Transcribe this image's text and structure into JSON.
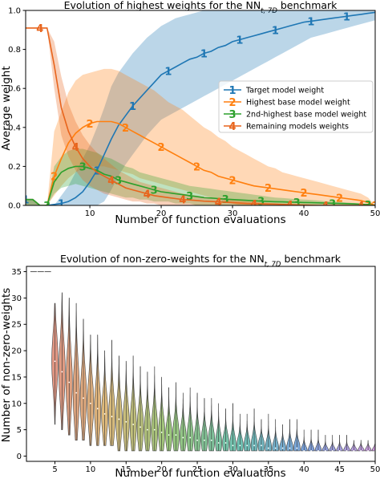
{
  "chart_data": [
    {
      "type": "line",
      "title": "Evolution of highest weights for the NN",
      "title_sub": "t, 7D",
      "title_suffix": " benchmark",
      "xlabel": "Number of function evaluations",
      "ylabel": "Average weight",
      "xlim": [
        1,
        50
      ],
      "ylim": [
        0,
        1.0
      ],
      "xticks": [
        10,
        20,
        30,
        40,
        50
      ],
      "yticks": [
        0.0,
        0.2,
        0.4,
        0.6,
        0.8,
        1.0
      ],
      "grid": false,
      "legend_position": "center-right",
      "x": [
        1,
        2,
        3,
        4,
        5,
        6,
        7,
        8,
        9,
        10,
        11,
        12,
        13,
        14,
        15,
        16,
        17,
        18,
        19,
        20,
        21,
        22,
        23,
        24,
        25,
        26,
        27,
        28,
        29,
        30,
        31,
        32,
        33,
        34,
        35,
        36,
        37,
        38,
        39,
        40,
        41,
        42,
        43,
        44,
        45,
        46,
        47,
        48,
        49,
        50
      ],
      "series": [
        {
          "name": "Target model weight",
          "color": "#1f77b4",
          "marker": "1",
          "values": [
            0.03,
            0.03,
            0.0,
            0.0,
            0.005,
            0.01,
            0.02,
            0.04,
            0.07,
            0.12,
            0.18,
            0.26,
            0.34,
            0.41,
            0.46,
            0.51,
            0.55,
            0.59,
            0.63,
            0.67,
            0.69,
            0.71,
            0.73,
            0.75,
            0.76,
            0.78,
            0.79,
            0.81,
            0.82,
            0.84,
            0.85,
            0.86,
            0.87,
            0.88,
            0.89,
            0.9,
            0.91,
            0.92,
            0.93,
            0.94,
            0.945,
            0.95,
            0.955,
            0.96,
            0.965,
            0.97,
            0.975,
            0.98,
            0.985,
            0.99
          ],
          "band_low": [
            0.0,
            0.0,
            0.0,
            0.0,
            0.0,
            0.0,
            0.0,
            0.0,
            0.0,
            0.0,
            0.0,
            0.02,
            0.08,
            0.15,
            0.21,
            0.26,
            0.31,
            0.36,
            0.4,
            0.44,
            0.46,
            0.48,
            0.5,
            0.52,
            0.54,
            0.56,
            0.58,
            0.6,
            0.62,
            0.64,
            0.66,
            0.68,
            0.7,
            0.72,
            0.74,
            0.76,
            0.78,
            0.8,
            0.82,
            0.84,
            0.86,
            0.87,
            0.88,
            0.89,
            0.9,
            0.91,
            0.92,
            0.93,
            0.94,
            0.95
          ],
          "band_high": [
            0.03,
            0.03,
            0.0,
            0.0,
            0.0,
            0.05,
            0.1,
            0.17,
            0.24,
            0.31,
            0.4,
            0.5,
            0.61,
            0.68,
            0.73,
            0.78,
            0.82,
            0.86,
            0.89,
            0.92,
            0.94,
            0.96,
            0.97,
            0.98,
            0.99,
            1.0,
            1.0,
            1.0,
            1.0,
            1.0,
            1.0,
            1.0,
            1.0,
            1.0,
            1.0,
            1.0,
            1.0,
            1.0,
            1.0,
            1.0,
            1.0,
            1.0,
            1.0,
            1.0,
            1.0,
            1.0,
            1.0,
            1.0,
            1.0,
            1.0
          ]
        },
        {
          "name": "Highest base model weight",
          "color": "#ff7f0e",
          "marker": "2",
          "values": [
            0.03,
            0.03,
            0.0,
            0.0,
            0.15,
            0.24,
            0.32,
            0.37,
            0.4,
            0.42,
            0.43,
            0.43,
            0.43,
            0.42,
            0.4,
            0.38,
            0.36,
            0.34,
            0.32,
            0.3,
            0.28,
            0.26,
            0.24,
            0.22,
            0.2,
            0.18,
            0.17,
            0.15,
            0.14,
            0.13,
            0.12,
            0.11,
            0.1,
            0.095,
            0.09,
            0.085,
            0.08,
            0.075,
            0.07,
            0.065,
            0.06,
            0.055,
            0.05,
            0.045,
            0.04,
            0.035,
            0.03,
            0.025,
            0.015,
            0.0
          ],
          "band_low": [
            0.0,
            0.0,
            0.0,
            0.0,
            0.05,
            0.1,
            0.14,
            0.17,
            0.19,
            0.2,
            0.2,
            0.2,
            0.19,
            0.18,
            0.17,
            0.16,
            0.14,
            0.13,
            0.12,
            0.11,
            0.1,
            0.09,
            0.08,
            0.07,
            0.06,
            0.05,
            0.04,
            0.03,
            0.02,
            0.01,
            0.0,
            0.0,
            0.0,
            0.0,
            0.0,
            0.0,
            0.0,
            0.0,
            0.0,
            0.0,
            0.0,
            0.0,
            0.0,
            0.0,
            0.0,
            0.0,
            0.0,
            0.0,
            0.0,
            0.0
          ],
          "band_high": [
            0.03,
            0.03,
            0.0,
            0.0,
            0.38,
            0.48,
            0.58,
            0.64,
            0.67,
            0.68,
            0.69,
            0.7,
            0.7,
            0.69,
            0.67,
            0.65,
            0.63,
            0.61,
            0.59,
            0.56,
            0.53,
            0.51,
            0.49,
            0.46,
            0.43,
            0.4,
            0.38,
            0.35,
            0.33,
            0.3,
            0.28,
            0.26,
            0.24,
            0.22,
            0.2,
            0.19,
            0.17,
            0.16,
            0.15,
            0.14,
            0.13,
            0.12,
            0.11,
            0.1,
            0.09,
            0.08,
            0.07,
            0.06,
            0.04,
            0.0
          ]
        },
        {
          "name": "2nd-highest base model weight",
          "color": "#2ca02c",
          "marker": "3",
          "values": [
            0.03,
            0.03,
            0.0,
            0.0,
            0.12,
            0.17,
            0.19,
            0.2,
            0.2,
            0.19,
            0.18,
            0.16,
            0.15,
            0.13,
            0.12,
            0.11,
            0.1,
            0.09,
            0.08,
            0.07,
            0.065,
            0.06,
            0.055,
            0.05,
            0.045,
            0.04,
            0.038,
            0.035,
            0.032,
            0.03,
            0.028,
            0.026,
            0.024,
            0.022,
            0.02,
            0.019,
            0.018,
            0.017,
            0.016,
            0.015,
            0.014,
            0.013,
            0.012,
            0.011,
            0.01,
            0.009,
            0.008,
            0.006,
            0.004,
            0.0
          ],
          "band_low": [
            0.0,
            0.0,
            0.0,
            0.0,
            0.06,
            0.09,
            0.1,
            0.11,
            0.1,
            0.09,
            0.08,
            0.07,
            0.06,
            0.05,
            0.04,
            0.04,
            0.03,
            0.03,
            0.02,
            0.02,
            0.02,
            0.01,
            0.01,
            0.01,
            0.0,
            0.0,
            0.0,
            0.0,
            0.0,
            0.0,
            0.0,
            0.0,
            0.0,
            0.0,
            0.0,
            0.0,
            0.0,
            0.0,
            0.0,
            0.0,
            0.0,
            0.0,
            0.0,
            0.0,
            0.0,
            0.0,
            0.0,
            0.0,
            0.0,
            0.0
          ],
          "band_high": [
            0.03,
            0.03,
            0.0,
            0.0,
            0.2,
            0.25,
            0.28,
            0.29,
            0.29,
            0.28,
            0.27,
            0.25,
            0.24,
            0.22,
            0.2,
            0.19,
            0.17,
            0.16,
            0.15,
            0.14,
            0.13,
            0.12,
            0.11,
            0.1,
            0.095,
            0.09,
            0.085,
            0.08,
            0.075,
            0.07,
            0.065,
            0.06,
            0.055,
            0.05,
            0.045,
            0.04,
            0.038,
            0.035,
            0.032,
            0.03,
            0.028,
            0.025,
            0.022,
            0.02,
            0.018,
            0.015,
            0.012,
            0.01,
            0.006,
            0.0
          ]
        },
        {
          "name": "Remaining models weights",
          "color": "#e8641c",
          "marker": "4",
          "values": [
            0.91,
            0.91,
            0.91,
            0.91,
            0.72,
            0.5,
            0.38,
            0.3,
            0.24,
            0.2,
            0.17,
            0.15,
            0.13,
            0.11,
            0.09,
            0.08,
            0.07,
            0.06,
            0.05,
            0.045,
            0.04,
            0.035,
            0.03,
            0.028,
            0.025,
            0.022,
            0.02,
            0.018,
            0.016,
            0.014,
            0.012,
            0.01,
            0.009,
            0.008,
            0.007,
            0.006,
            0.005,
            0.004,
            0.003,
            0.002,
            0.001,
            0.0,
            0.0,
            0.0,
            0.0,
            0.0,
            0.0,
            0.0,
            0.0,
            0.0
          ],
          "band_low": [
            0.91,
            0.91,
            0.91,
            0.91,
            0.6,
            0.36,
            0.25,
            0.18,
            0.13,
            0.1,
            0.08,
            0.06,
            0.05,
            0.04,
            0.03,
            0.02,
            0.02,
            0.01,
            0.01,
            0.0,
            0.0,
            0.0,
            0.0,
            0.0,
            0.0,
            0.0,
            0.0,
            0.0,
            0.0,
            0.0,
            0.0,
            0.0,
            0.0,
            0.0,
            0.0,
            0.0,
            0.0,
            0.0,
            0.0,
            0.0,
            0.0,
            0.0,
            0.0,
            0.0,
            0.0,
            0.0,
            0.0,
            0.0,
            0.0,
            0.0
          ],
          "band_high": [
            0.91,
            0.91,
            0.91,
            0.91,
            0.84,
            0.66,
            0.52,
            0.43,
            0.36,
            0.31,
            0.27,
            0.24,
            0.21,
            0.18,
            0.16,
            0.14,
            0.12,
            0.11,
            0.1,
            0.09,
            0.08,
            0.07,
            0.06,
            0.055,
            0.05,
            0.045,
            0.04,
            0.035,
            0.03,
            0.027,
            0.024,
            0.021,
            0.018,
            0.015,
            0.013,
            0.011,
            0.009,
            0.007,
            0.005,
            0.004,
            0.003,
            0.002,
            0.001,
            0.0,
            0.0,
            0.0,
            0.0,
            0.0,
            0.0,
            0.0
          ]
        }
      ]
    },
    {
      "type": "violin",
      "title": "Evolution of non-zero-weights for the NN",
      "title_sub": "t, 7D",
      "title_suffix": " benchmark",
      "xlabel": "Number of function evaluations",
      "ylabel": "Number of non-zero-weights",
      "xlim": [
        1,
        50
      ],
      "ylim": [
        -1,
        36
      ],
      "xticks": [
        5,
        10,
        15,
        20,
        25,
        30,
        35,
        40,
        45,
        50
      ],
      "yticks": [
        0,
        5,
        10,
        15,
        20,
        25,
        30,
        35
      ],
      "grid": false,
      "x": [
        2,
        3,
        4,
        5,
        6,
        7,
        8,
        9,
        10,
        11,
        12,
        13,
        14,
        15,
        16,
        17,
        18,
        19,
        20,
        21,
        22,
        23,
        24,
        25,
        26,
        27,
        28,
        29,
        30,
        31,
        32,
        33,
        34,
        35,
        36,
        37,
        38,
        39,
        40,
        41,
        42,
        43,
        44,
        45,
        46,
        47,
        48,
        49,
        50
      ],
      "min": [
        35,
        35,
        35,
        6,
        5,
        4,
        3,
        3,
        2,
        2,
        2,
        2,
        1,
        1,
        1,
        1,
        1,
        1,
        1,
        1,
        1,
        1,
        1,
        1,
        1,
        1,
        1,
        1,
        1,
        1,
        1,
        1,
        1,
        1,
        1,
        1,
        1,
        1,
        1,
        1,
        1,
        1,
        1,
        1,
        1,
        1,
        1,
        1,
        1
      ],
      "max": [
        35,
        35,
        35,
        29,
        31,
        30,
        29,
        26,
        23,
        23,
        20,
        22,
        19,
        18,
        19,
        17,
        16,
        17,
        15,
        13,
        14,
        12,
        13,
        12,
        11,
        11,
        10,
        9,
        10,
        8,
        8,
        9,
        7,
        8,
        7,
        6,
        7,
        7,
        5,
        5,
        5,
        4,
        4,
        4,
        4,
        3,
        3,
        3,
        3
      ],
      "median": [
        35,
        35,
        35,
        18,
        16,
        14,
        12,
        11,
        10,
        9,
        8,
        7.5,
        7,
        6.5,
        6,
        5.5,
        5,
        5,
        4.5,
        4,
        4,
        3.5,
        3.5,
        3,
        3,
        3,
        2.5,
        2.5,
        2,
        2,
        2,
        2,
        2,
        1.5,
        1.5,
        1.5,
        1.5,
        1.5,
        1,
        1,
        1,
        1,
        1,
        1,
        1,
        1,
        1,
        1,
        1
      ]
    }
  ]
}
